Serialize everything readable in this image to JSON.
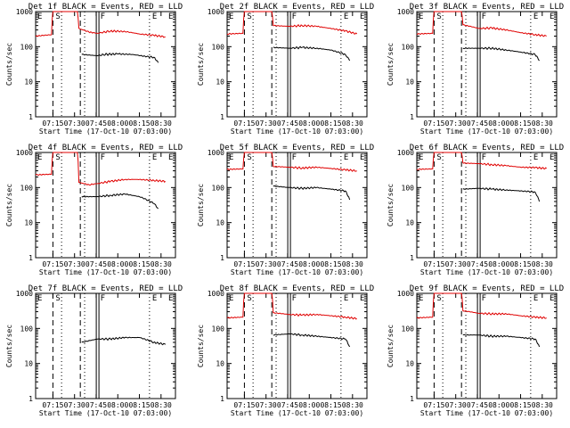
{
  "colors": {
    "events": "#000000",
    "lld": "#e00000",
    "axes": "#000000",
    "background": "#ffffff"
  },
  "common": {
    "xlabel": "Start Time (17-Oct-10 07:03:00)",
    "ylabel": "Counts/sec",
    "x_ticks": [
      "07:15",
      "07:30",
      "07:45",
      "08:00",
      "08:15",
      "08:30"
    ],
    "y_ticks": [
      "1",
      "10",
      "100",
      "1000"
    ],
    "ylim": [
      1,
      1000
    ],
    "yscale": "log",
    "xlim": [
      "07:03",
      "08:40"
    ],
    "markers": [
      {
        "time": "07:15",
        "style": "dashed",
        "letter": "S"
      },
      {
        "time": "07:21",
        "style": "dotted",
        "letter": ""
      },
      {
        "time": "07:34",
        "style": "dashed",
        "letter": ""
      },
      {
        "time": "07:37",
        "style": "dotted",
        "letter": ""
      },
      {
        "time": "07:46",
        "style": "double",
        "letter": "F"
      },
      {
        "time": "08:22",
        "style": "dotted",
        "letter": "E"
      }
    ],
    "corner_letters": [
      "E",
      "E"
    ]
  },
  "chart_data": [
    {
      "type": "line",
      "title": "Det 1f BLACK = Events, RED = LLD",
      "x_times": [
        "07:03",
        "07:14",
        "07:15",
        "07:32",
        "07:33",
        "07:46",
        "08:33"
      ],
      "series": [
        {
          "name": "LLD",
          "color": "#e00000",
          "points": [
            [
              "07:03",
              200
            ],
            [
              "07:14",
              220
            ],
            [
              "07:15",
              1000
            ],
            [
              "07:32",
              1000
            ],
            [
              "07:33",
              330
            ],
            [
              "07:40",
              260
            ],
            [
              "07:46",
              240
            ],
            [
              "07:55",
              280
            ],
            [
              "08:05",
              270
            ],
            [
              "08:15",
              230
            ],
            [
              "08:25",
              210
            ],
            [
              "08:33",
              190
            ]
          ]
        },
        {
          "name": "Events",
          "color": "#000000",
          "points": [
            [
              "07:35",
              60
            ],
            [
              "07:46",
              55
            ],
            [
              "07:50",
              60
            ],
            [
              "08:00",
              62
            ],
            [
              "08:10",
              60
            ],
            [
              "08:20",
              52
            ],
            [
              "08:25",
              50
            ],
            [
              "08:28",
              35
            ]
          ]
        }
      ]
    },
    {
      "type": "line",
      "title": "Det 2f BLACK = Events, RED = LLD",
      "series": [
        {
          "name": "LLD",
          "color": "#e00000",
          "points": [
            [
              "07:03",
              230
            ],
            [
              "07:14",
              240
            ],
            [
              "07:15",
              1000
            ],
            [
              "07:34",
              1000
            ],
            [
              "07:35",
              400
            ],
            [
              "07:46",
              380
            ],
            [
              "07:55",
              400
            ],
            [
              "08:05",
              380
            ],
            [
              "08:15",
              330
            ],
            [
              "08:25",
              280
            ],
            [
              "08:33",
              230
            ]
          ]
        },
        {
          "name": "Events",
          "color": "#000000",
          "points": [
            [
              "07:35",
              95
            ],
            [
              "07:46",
              90
            ],
            [
              "07:55",
              95
            ],
            [
              "08:05",
              90
            ],
            [
              "08:15",
              80
            ],
            [
              "08:25",
              60
            ],
            [
              "08:28",
              40
            ]
          ]
        }
      ]
    },
    {
      "type": "line",
      "title": "Det 3f BLACK = Events, RED = LLD",
      "series": [
        {
          "name": "LLD",
          "color": "#e00000",
          "points": [
            [
              "07:03",
              230
            ],
            [
              "07:14",
              240
            ],
            [
              "07:15",
              1000
            ],
            [
              "07:34",
              1000
            ],
            [
              "07:35",
              420
            ],
            [
              "07:46",
              330
            ],
            [
              "07:55",
              340
            ],
            [
              "08:05",
              300
            ],
            [
              "08:15",
              250
            ],
            [
              "08:25",
              220
            ],
            [
              "08:33",
              200
            ]
          ]
        },
        {
          "name": "Events",
          "color": "#000000",
          "points": [
            [
              "07:35",
              90
            ],
            [
              "07:46",
              90
            ],
            [
              "07:55",
              90
            ],
            [
              "08:05",
              80
            ],
            [
              "08:15",
              70
            ],
            [
              "08:25",
              60
            ],
            [
              "08:28",
              40
            ]
          ]
        }
      ]
    },
    {
      "type": "line",
      "title": "Det 4f BLACK = Events, RED = LLD",
      "series": [
        {
          "name": "LLD",
          "color": "#e00000",
          "points": [
            [
              "07:03",
              230
            ],
            [
              "07:14",
              240
            ],
            [
              "07:15",
              1000
            ],
            [
              "07:32",
              1000
            ],
            [
              "07:33",
              140
            ],
            [
              "07:40",
              120
            ],
            [
              "07:46",
              130
            ],
            [
              "07:55",
              150
            ],
            [
              "08:05",
              170
            ],
            [
              "08:15",
              170
            ],
            [
              "08:25",
              160
            ],
            [
              "08:33",
              150
            ]
          ]
        },
        {
          "name": "Events",
          "color": "#000000",
          "points": [
            [
              "07:35",
              55
            ],
            [
              "07:46",
              55
            ],
            [
              "07:55",
              60
            ],
            [
              "08:05",
              65
            ],
            [
              "08:15",
              55
            ],
            [
              "08:25",
              35
            ],
            [
              "08:28",
              25
            ]
          ]
        }
      ]
    },
    {
      "type": "line",
      "title": "Det 5f BLACK = Events, RED = LLD",
      "series": [
        {
          "name": "LLD",
          "color": "#e00000",
          "points": [
            [
              "07:03",
              330
            ],
            [
              "07:14",
              340
            ],
            [
              "07:15",
              1000
            ],
            [
              "07:34",
              1000
            ],
            [
              "07:35",
              400
            ],
            [
              "07:46",
              380
            ],
            [
              "07:55",
              360
            ],
            [
              "08:05",
              380
            ],
            [
              "08:15",
              350
            ],
            [
              "08:25",
              320
            ],
            [
              "08:33",
              300
            ]
          ]
        },
        {
          "name": "Events",
          "color": "#000000",
          "points": [
            [
              "07:35",
              110
            ],
            [
              "07:46",
              100
            ],
            [
              "07:55",
              95
            ],
            [
              "08:05",
              100
            ],
            [
              "08:15",
              90
            ],
            [
              "08:25",
              80
            ],
            [
              "08:28",
              45
            ]
          ]
        }
      ]
    },
    {
      "type": "line",
      "title": "Det 6f BLACK = Events, RED = LLD",
      "series": [
        {
          "name": "LLD",
          "color": "#e00000",
          "points": [
            [
              "07:03",
              330
            ],
            [
              "07:14",
              340
            ],
            [
              "07:15",
              1000
            ],
            [
              "07:34",
              1000
            ],
            [
              "07:35",
              500
            ],
            [
              "07:46",
              480
            ],
            [
              "07:55",
              450
            ],
            [
              "08:05",
              420
            ],
            [
              "08:15",
              380
            ],
            [
              "08:25",
              370
            ],
            [
              "08:33",
              350
            ]
          ]
        },
        {
          "name": "Events",
          "color": "#000000",
          "points": [
            [
              "07:35",
              90
            ],
            [
              "07:46",
              95
            ],
            [
              "07:55",
              90
            ],
            [
              "08:05",
              85
            ],
            [
              "08:15",
              80
            ],
            [
              "08:25",
              75
            ],
            [
              "08:28",
              40
            ]
          ]
        }
      ]
    },
    {
      "type": "line",
      "title": "Det 7f BLACK = Events, RED = LLD",
      "series": [
        {
          "name": "Events",
          "color": "#000000",
          "points": [
            [
              "07:35",
              40
            ],
            [
              "07:46",
              50
            ],
            [
              "07:55",
              50
            ],
            [
              "08:05",
              55
            ],
            [
              "08:15",
              55
            ],
            [
              "08:25",
              40
            ],
            [
              "08:33",
              35
            ]
          ]
        }
      ]
    },
    {
      "type": "line",
      "title": "Det 8f BLACK = Events, RED = LLD",
      "series": [
        {
          "name": "LLD",
          "color": "#e00000",
          "points": [
            [
              "07:03",
              200
            ],
            [
              "07:14",
              210
            ],
            [
              "07:15",
              1000
            ],
            [
              "07:34",
              1000
            ],
            [
              "07:35",
              280
            ],
            [
              "07:46",
              250
            ],
            [
              "07:55",
              240
            ],
            [
              "08:05",
              250
            ],
            [
              "08:15",
              230
            ],
            [
              "08:25",
              210
            ],
            [
              "08:33",
              190
            ]
          ]
        },
        {
          "name": "Events",
          "color": "#000000",
          "points": [
            [
              "07:35",
              65
            ],
            [
              "07:46",
              70
            ],
            [
              "07:55",
              65
            ],
            [
              "08:05",
              60
            ],
            [
              "08:15",
              55
            ],
            [
              "08:25",
              50
            ],
            [
              "08:28",
              30
            ]
          ]
        }
      ]
    },
    {
      "type": "line",
      "title": "Det 9f BLACK = Events, RED = LLD",
      "series": [
        {
          "name": "LLD",
          "color": "#e00000",
          "points": [
            [
              "07:03",
              200
            ],
            [
              "07:14",
              210
            ],
            [
              "07:15",
              1000
            ],
            [
              "07:34",
              1000
            ],
            [
              "07:35",
              320
            ],
            [
              "07:46",
              270
            ],
            [
              "07:55",
              260
            ],
            [
              "08:05",
              260
            ],
            [
              "08:15",
              230
            ],
            [
              "08:25",
              210
            ],
            [
              "08:33",
              200
            ]
          ]
        },
        {
          "name": "Events",
          "color": "#000000",
          "points": [
            [
              "07:35",
              65
            ],
            [
              "07:46",
              65
            ],
            [
              "07:55",
              60
            ],
            [
              "08:05",
              60
            ],
            [
              "08:15",
              55
            ],
            [
              "08:25",
              50
            ],
            [
              "08:28",
              30
            ]
          ]
        }
      ]
    }
  ]
}
